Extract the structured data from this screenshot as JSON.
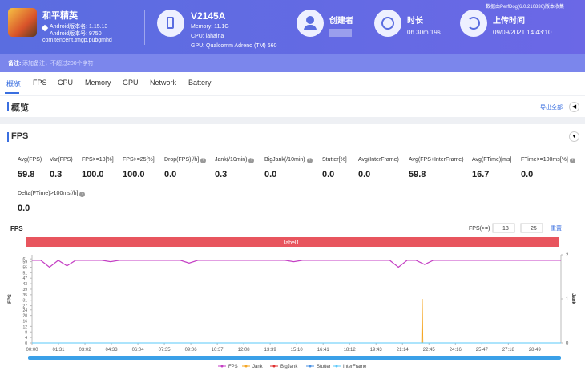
{
  "header": {
    "app_name": "和平精英",
    "android_version": "Android版本名: 1.15.13",
    "android_code": "Android版本号: 9750",
    "package": "com.tencent.tmgp.pubgmhd",
    "device": "V2145A",
    "memory": "Memory: 11.1G",
    "cpu": "CPU: lahaina",
    "gpu": "GPU: Qualcomm Adreno (TM) 660",
    "creator_label": "创建者",
    "duration_label": "时长",
    "duration": "0h 30m 19s",
    "upload_label": "上传时间",
    "upload_time": "09/09/2021 14:43:10",
    "collected_by": "数据由PerfDog(6.0.210836)版本收集"
  },
  "note": {
    "label": "备注:",
    "placeholder": "添加备注，不超过200个字符"
  },
  "tabs": [
    "概览",
    "FPS",
    "CPU",
    "Memory",
    "GPU",
    "Network",
    "Battery"
  ],
  "overview": {
    "title": "概览",
    "export": "导出全部"
  },
  "fps_section": {
    "title": "FPS",
    "metrics": [
      {
        "label": "Avg(FPS)",
        "value": "59.8",
        "help": false
      },
      {
        "label": "Var(FPS)",
        "value": "0.3",
        "help": false
      },
      {
        "label": "FPS>=18[%]",
        "value": "100.0",
        "help": false
      },
      {
        "label": "FPS>=25[%]",
        "value": "100.0",
        "help": false
      },
      {
        "label": "Drop(FPS)[/h]",
        "value": "0.0",
        "help": true
      },
      {
        "label": "Jank(/10min)",
        "value": "0.3",
        "help": true
      },
      {
        "label": "BigJank(/10min)",
        "value": "0.0",
        "help": true
      },
      {
        "label": "Stutter[%]",
        "value": "0.0",
        "help": false
      },
      {
        "label": "Avg(InterFrame)",
        "value": "0.0",
        "help": false
      },
      {
        "label": "Avg(FPS+InterFrame)",
        "value": "59.8",
        "help": false
      },
      {
        "label": "Avg(FTime)[ms]",
        "value": "16.7",
        "help": false
      },
      {
        "label": "FTime>=100ms[%]",
        "value": "0.0",
        "help": true
      },
      {
        "label": "Delta(FTime)>100ms[/h]",
        "value": "0.0",
        "help": true
      }
    ]
  },
  "chart_data": {
    "type": "line",
    "title": "FPS",
    "threshold_label": "FPS(>=)",
    "thresholds": [
      18,
      25
    ],
    "reset": "重置",
    "label_bar": "label1",
    "y_label": "FPS",
    "y2_label": "Jank",
    "xlim": [
      0,
      1819
    ],
    "xticks": [
      {
        "value": 0,
        "label": "00:00"
      },
      {
        "value": 91,
        "label": "01:31"
      },
      {
        "value": 182,
        "label": "03:02"
      },
      {
        "value": 273,
        "label": "04:33"
      },
      {
        "value": 364,
        "label": "06:04"
      },
      {
        "value": 455,
        "label": "07:35"
      },
      {
        "value": 546,
        "label": "09:06"
      },
      {
        "value": 637,
        "label": "10:37"
      },
      {
        "value": 728,
        "label": "12:08"
      },
      {
        "value": 819,
        "label": "13:39"
      },
      {
        "value": 910,
        "label": "15:10"
      },
      {
        "value": 1001,
        "label": "16:41"
      },
      {
        "value": 1092,
        "label": "18:12"
      },
      {
        "value": 1183,
        "label": "19:43"
      },
      {
        "value": 1274,
        "label": "21:14"
      },
      {
        "value": 1365,
        "label": "22:45"
      },
      {
        "value": 1456,
        "label": "24:16"
      },
      {
        "value": 1547,
        "label": "25:47"
      },
      {
        "value": 1638,
        "label": "27:18"
      },
      {
        "value": 1729,
        "label": "28:49"
      }
    ],
    "ylim": [
      0,
      64
    ],
    "yticks": [
      0,
      4,
      8,
      12,
      16,
      20,
      24,
      27,
      31,
      35,
      39,
      43,
      47,
      51,
      55,
      59,
      61
    ],
    "y2lim": [
      0,
      2
    ],
    "y2ticks": [
      0,
      1,
      2
    ],
    "series": [
      {
        "name": "FPS",
        "color": "#c43fc4",
        "x": [
          0,
          30,
          60,
          90,
          120,
          150,
          180,
          210,
          240,
          270,
          300,
          330,
          360,
          390,
          420,
          450,
          480,
          510,
          540,
          570,
          600,
          630,
          660,
          690,
          720,
          750,
          780,
          810,
          840,
          870,
          900,
          930,
          960,
          990,
          1020,
          1050,
          1080,
          1110,
          1140,
          1170,
          1200,
          1230,
          1260,
          1290,
          1320,
          1350,
          1380,
          1410,
          1440,
          1470,
          1500,
          1530,
          1560,
          1590,
          1620,
          1650,
          1680,
          1710,
          1740,
          1770,
          1800,
          1819
        ],
        "values": [
          60,
          60,
          55,
          60,
          56,
          60,
          60,
          60,
          60,
          59,
          60,
          60,
          60,
          60,
          60,
          60,
          60,
          60,
          58,
          60,
          60,
          60,
          60,
          60,
          60,
          60,
          60,
          60,
          60,
          60,
          59,
          60,
          60,
          60,
          60,
          60,
          60,
          60,
          60,
          60,
          60,
          60,
          55,
          60,
          60,
          57,
          60,
          60,
          60,
          60,
          60,
          60,
          60,
          60,
          60,
          60,
          60,
          60,
          60,
          60,
          60,
          60
        ]
      },
      {
        "name": "Jank",
        "color": "#f5a623",
        "axis": "y2",
        "x": [
          0,
          1340,
          1342,
          1344,
          1819
        ],
        "values": [
          0,
          0,
          1,
          0,
          0
        ]
      },
      {
        "name": "BigJank",
        "color": "#e03030",
        "axis": "y2",
        "x": [
          0,
          1819
        ],
        "values": [
          0,
          0
        ]
      },
      {
        "name": "Stutter",
        "color": "#4a90e2",
        "axis": "y2",
        "x": [
          0,
          1819
        ],
        "values": [
          0,
          0
        ]
      },
      {
        "name": "InterFrame",
        "color": "#5ac8fa",
        "x": [
          0,
          1819
        ],
        "values": [
          0,
          0
        ]
      }
    ]
  }
}
